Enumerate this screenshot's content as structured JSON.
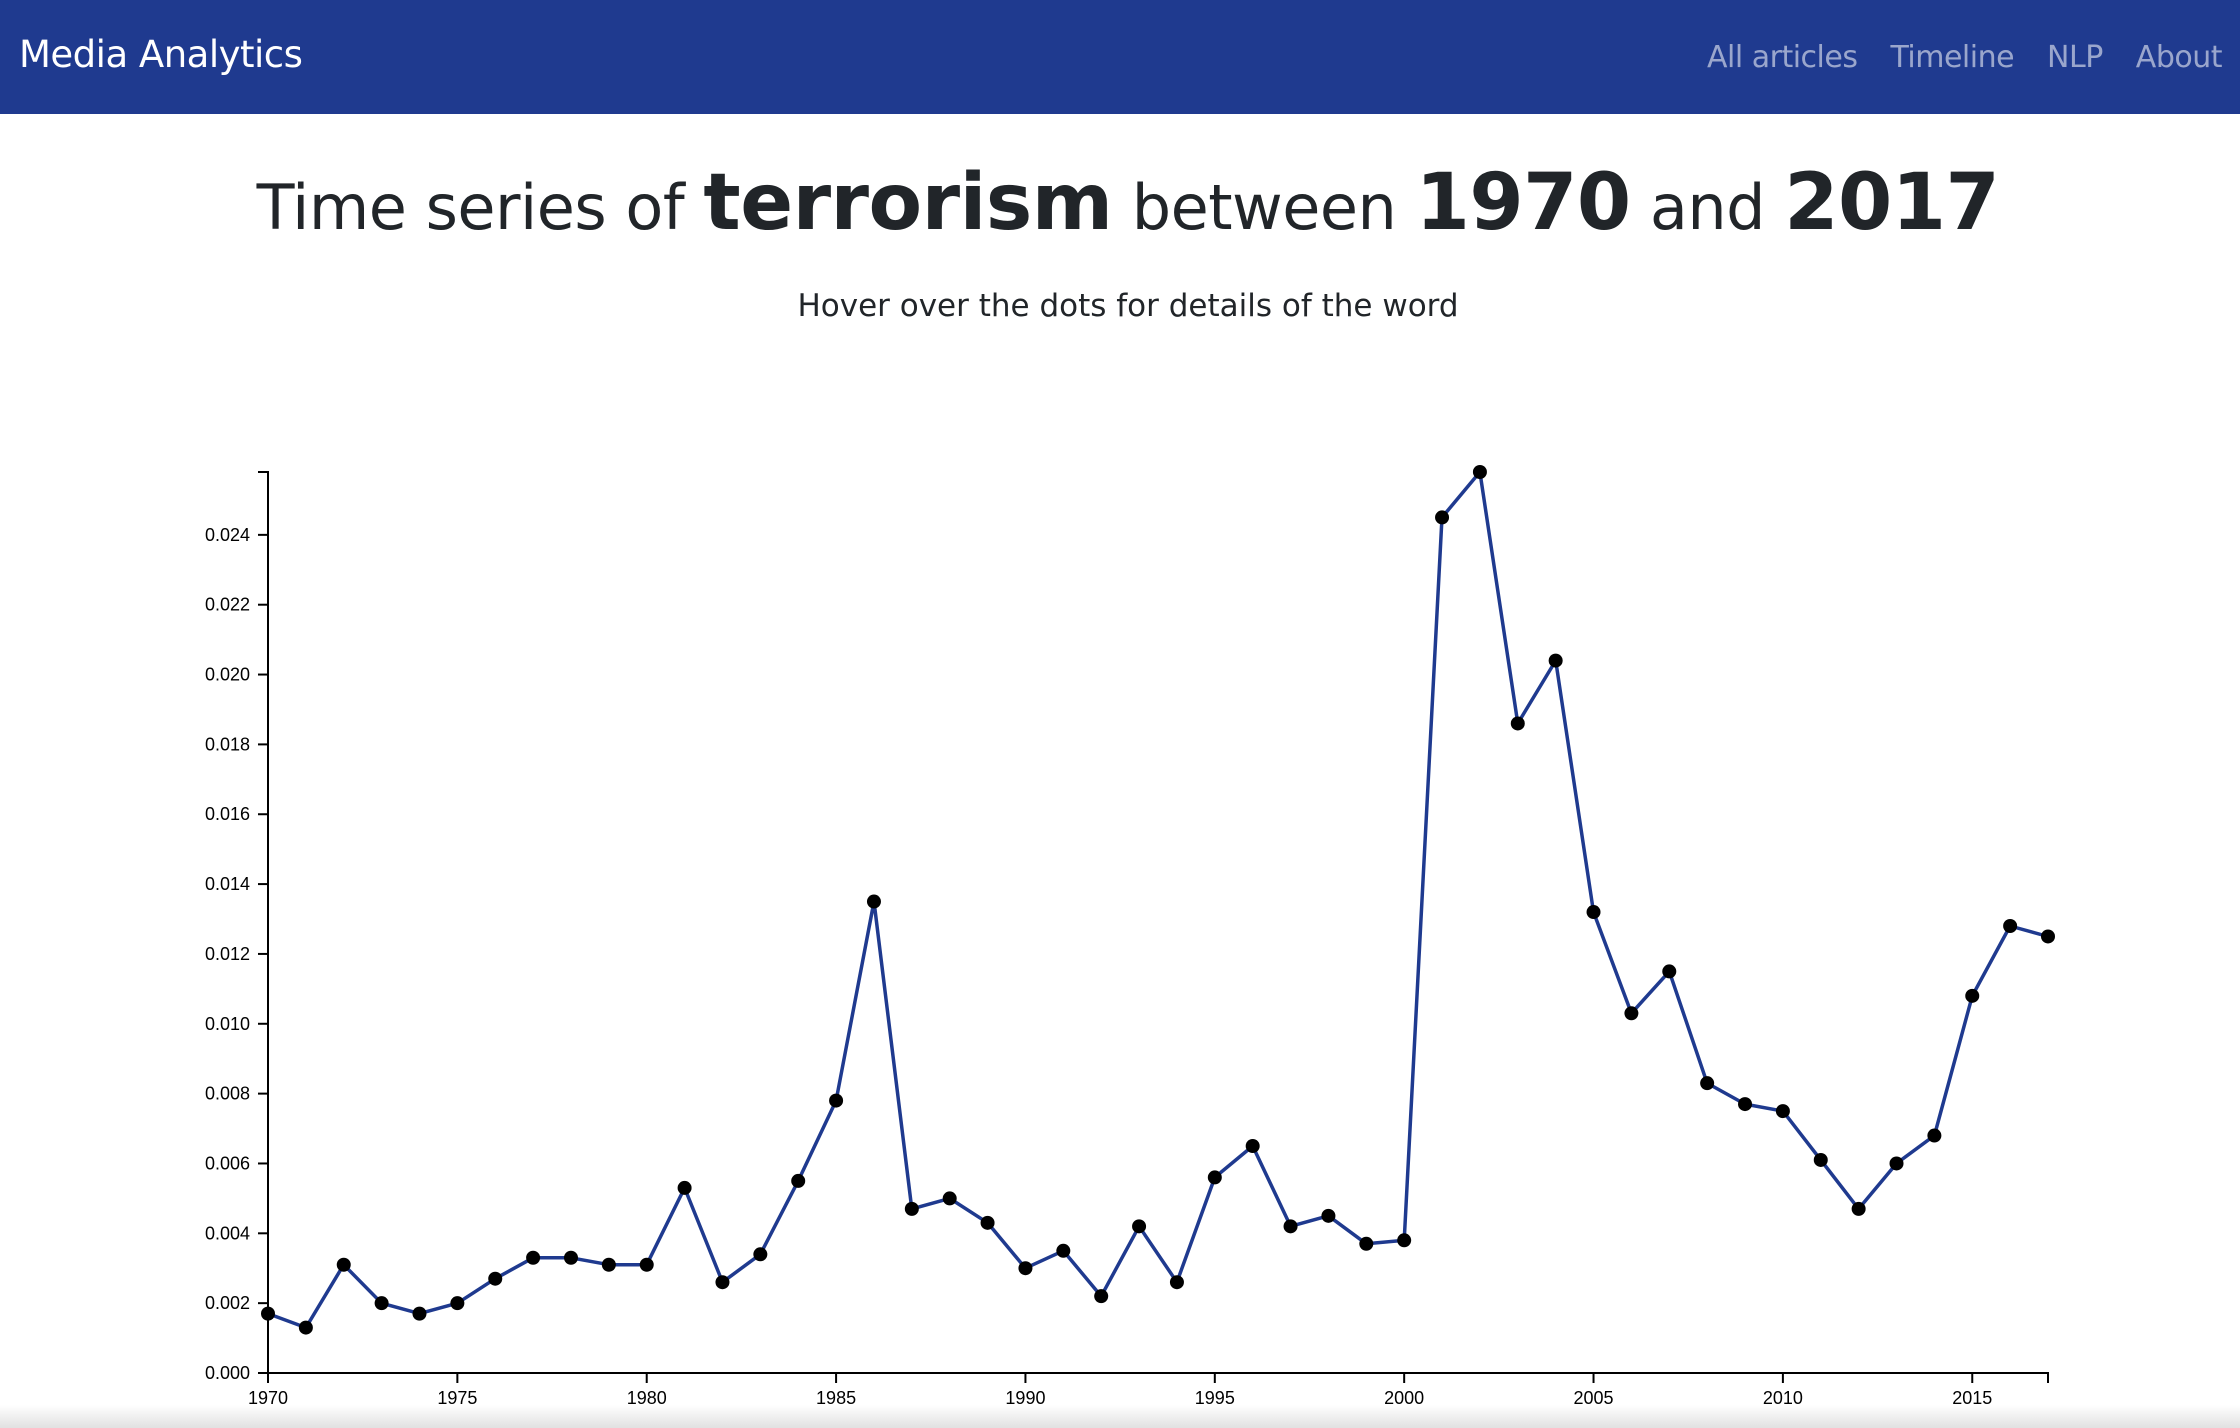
{
  "navbar": {
    "brand": "Media Analytics",
    "links": [
      "All articles",
      "Timeline",
      "NLP",
      "About"
    ],
    "background": "#1f3a8f"
  },
  "heading": {
    "prefix": "Time series of ",
    "term": "terrorism",
    "middle1": " between ",
    "start_year": "1970",
    "middle2": " and ",
    "end_year": "2017"
  },
  "subtitle": "Hover over the dots for details of the word",
  "chart_data": {
    "type": "line",
    "line_color": "#1f3a8f",
    "point_color": "#000000",
    "x": [
      1970,
      1971,
      1972,
      1973,
      1974,
      1975,
      1976,
      1977,
      1978,
      1979,
      1980,
      1981,
      1982,
      1983,
      1984,
      1985,
      1986,
      1987,
      1988,
      1989,
      1990,
      1991,
      1992,
      1993,
      1994,
      1995,
      1996,
      1997,
      1998,
      1999,
      2000,
      2001,
      2002,
      2003,
      2004,
      2005,
      2006,
      2007,
      2008,
      2009,
      2010,
      2011,
      2012,
      2013,
      2014,
      2015,
      2016,
      2017
    ],
    "y": [
      0.0017,
      0.0013,
      0.0031,
      0.002,
      0.0017,
      0.002,
      0.0027,
      0.0033,
      0.0033,
      0.0031,
      0.0031,
      0.0053,
      0.0026,
      0.0034,
      0.0055,
      0.0078,
      0.0135,
      0.0047,
      0.005,
      0.0043,
      0.003,
      0.0035,
      0.0022,
      0.0042,
      0.0026,
      0.0056,
      0.0065,
      0.0042,
      0.0045,
      0.0037,
      0.0038,
      0.0245,
      0.0258,
      0.0186,
      0.0204,
      0.0132,
      0.0103,
      0.0115,
      0.0083,
      0.0077,
      0.0075,
      0.0061,
      0.0047,
      0.006,
      0.0068,
      0.0108,
      0.0128,
      0.0125
    ],
    "xlim": [
      1970,
      2017
    ],
    "ylim": [
      0,
      0.0258
    ],
    "xticks": [
      "1970",
      "1975",
      "1980",
      "1985",
      "1990",
      "1995",
      "2000",
      "2005",
      "2010",
      "2015"
    ],
    "yticks": [
      "0.000",
      "0.002",
      "0.004",
      "0.006",
      "0.008",
      "0.010",
      "0.012",
      "0.014",
      "0.016",
      "0.018",
      "0.020",
      "0.022",
      "0.024"
    ],
    "title": "",
    "xlabel": "",
    "ylabel": "",
    "grid": false
  }
}
